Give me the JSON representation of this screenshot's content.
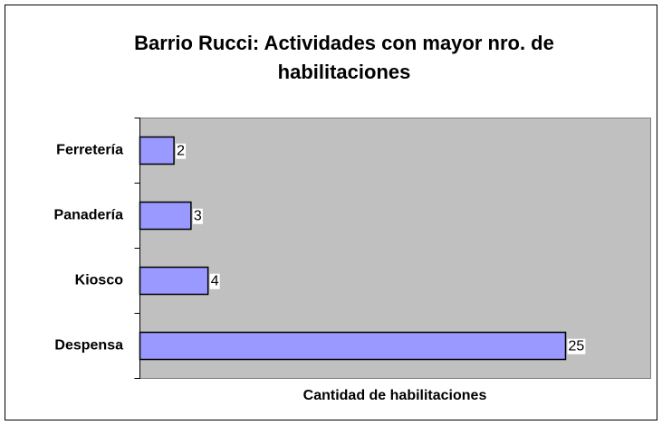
{
  "chart_data": {
    "type": "bar",
    "orientation": "horizontal",
    "title": "Barrio Rucci: Actividades con mayor nro. de habilitaciones",
    "xlabel": "Cantidad de habilitaciones",
    "categories": [
      "Ferretería",
      "Panadería",
      "Kiosco",
      "Despensa"
    ],
    "values": [
      2,
      3,
      4,
      25
    ],
    "color": "#9999ff",
    "xlim": [
      0,
      30
    ]
  }
}
